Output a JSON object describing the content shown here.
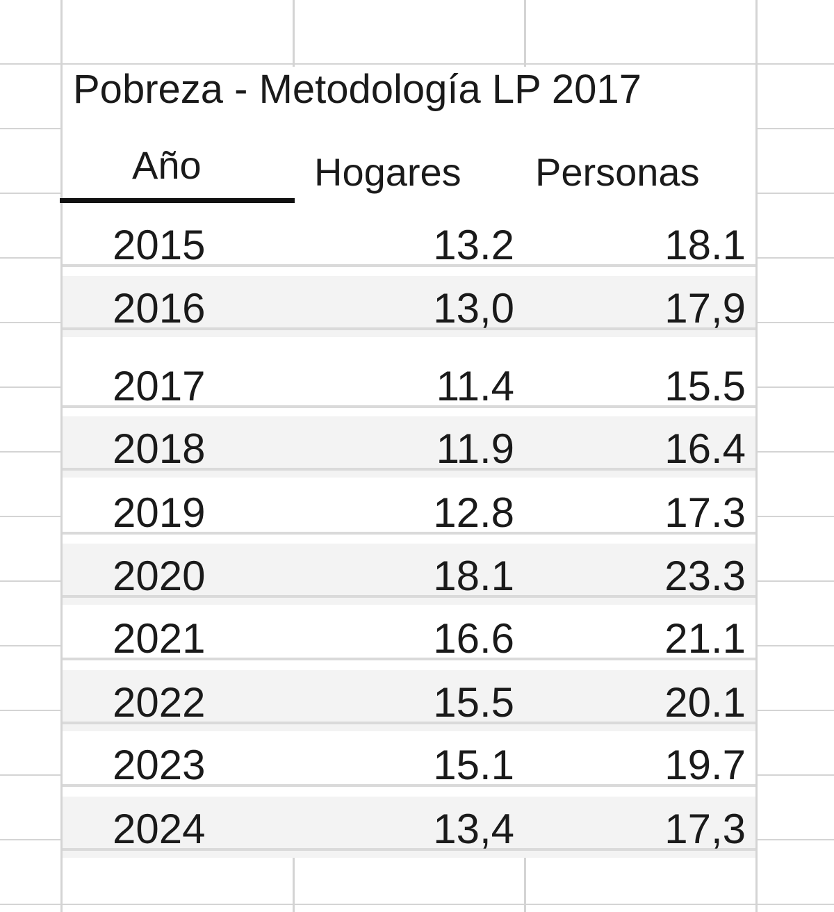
{
  "table": {
    "title": "Pobreza - Metodología LP 2017",
    "columns": [
      "Año",
      "Hogares",
      "Personas"
    ],
    "rows": [
      [
        "2015",
        "13.2",
        "18.1"
      ],
      [
        "2016",
        "13,0",
        "17,9"
      ],
      [
        "2017",
        "11.4",
        "15.5"
      ],
      [
        "2018",
        "11.9",
        "16.4"
      ],
      [
        "2019",
        "12.8",
        "17.3"
      ],
      [
        "2020",
        "18.1",
        "23.3"
      ],
      [
        "2021",
        "16.6",
        "21.1"
      ],
      [
        "2022",
        "15.5",
        "20.1"
      ],
      [
        "2023",
        "15.1",
        "19.7"
      ],
      [
        "2024",
        "13,4",
        "17,3"
      ]
    ]
  }
}
